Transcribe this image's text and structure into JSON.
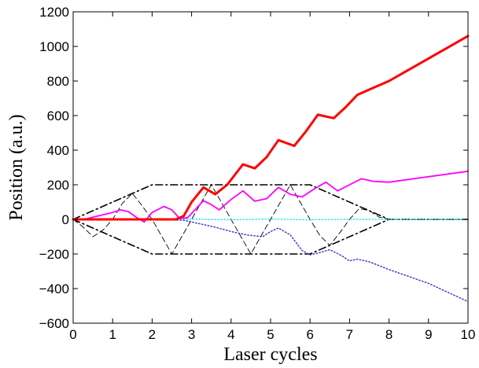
{
  "chart_data": {
    "type": "line",
    "title": "",
    "xlabel": "Laser cycles",
    "ylabel": "Position (a.u.)",
    "xlim": [
      0,
      10
    ],
    "ylim": [
      -600,
      1200
    ],
    "xticks": [
      0,
      1,
      2,
      3,
      4,
      5,
      6,
      7,
      8,
      9,
      10
    ],
    "yticks": [
      -600,
      -400,
      -200,
      0,
      200,
      400,
      600,
      800,
      1000,
      1200
    ],
    "xtick_labels": [
      "0",
      "1",
      "2",
      "3",
      "4",
      "5",
      "6",
      "7",
      "8",
      "9",
      "10"
    ],
    "ytick_labels": [
      "−600",
      "−400",
      "−200",
      "0",
      "200",
      "400",
      "600",
      "800",
      "1000",
      "1200"
    ],
    "grid": false,
    "legend": "none",
    "series": [
      {
        "color": "#000000",
        "style": "dash-dot",
        "width": 1.6,
        "points": [
          [
            0,
            0
          ],
          [
            2,
            200
          ],
          [
            6,
            200
          ],
          [
            8,
            0
          ],
          [
            10,
            0
          ]
        ]
      },
      {
        "color": "#000000",
        "style": "dash-dot",
        "width": 1.6,
        "points": [
          [
            0,
            0
          ],
          [
            2,
            -200
          ],
          [
            6,
            -200
          ],
          [
            8,
            0
          ]
        ]
      },
      {
        "color": "#000000",
        "style": "dashed",
        "width": 0.9,
        "points": [
          [
            0,
            0
          ],
          [
            0.25,
            -43
          ],
          [
            0.5,
            -100
          ],
          [
            0.75,
            -63
          ],
          [
            1,
            0
          ],
          [
            1.25,
            94
          ],
          [
            1.5,
            150
          ],
          [
            1.75,
            78
          ],
          [
            2,
            0
          ],
          [
            2.25,
            -100
          ],
          [
            2.5,
            -200
          ],
          [
            2.75,
            -100
          ],
          [
            3,
            0
          ],
          [
            3.25,
            100
          ],
          [
            3.5,
            200
          ],
          [
            3.75,
            100
          ],
          [
            4,
            0
          ],
          [
            4.25,
            -100
          ],
          [
            4.5,
            -200
          ],
          [
            4.75,
            -100
          ],
          [
            5,
            0
          ],
          [
            5.25,
            100
          ],
          [
            5.5,
            200
          ],
          [
            5.75,
            100
          ],
          [
            6,
            0
          ],
          [
            6.25,
            -94
          ],
          [
            6.5,
            -150
          ],
          [
            6.75,
            -78
          ],
          [
            7,
            0
          ],
          [
            7.25,
            63
          ],
          [
            7.5,
            50
          ],
          [
            7.75,
            13
          ],
          [
            8,
            0
          ],
          [
            10,
            0
          ]
        ]
      },
      {
        "color": "#00e5ee",
        "style": "dotted",
        "width": 1.2,
        "points": [
          [
            0,
            0
          ],
          [
            1,
            2
          ],
          [
            2,
            -1
          ],
          [
            3,
            2
          ],
          [
            4,
            -2
          ],
          [
            5,
            2
          ],
          [
            6,
            -2
          ],
          [
            7,
            1
          ],
          [
            8,
            0
          ],
          [
            10,
            0
          ]
        ]
      },
      {
        "color": "#3333cc",
        "style": "dotted",
        "width": 1.4,
        "points": [
          [
            0,
            0
          ],
          [
            1,
            0
          ],
          [
            2,
            0
          ],
          [
            2.8,
            -5
          ],
          [
            3.2,
            -25
          ],
          [
            3.6,
            -45
          ],
          [
            4,
            -70
          ],
          [
            4.4,
            -90
          ],
          [
            4.8,
            -100
          ],
          [
            5,
            -70
          ],
          [
            5.2,
            -50
          ],
          [
            5.5,
            -90
          ],
          [
            5.8,
            -180
          ],
          [
            6,
            -205
          ],
          [
            6.2,
            -195
          ],
          [
            6.5,
            -175
          ],
          [
            6.8,
            -210
          ],
          [
            7,
            -240
          ],
          [
            7.2,
            -230
          ],
          [
            7.5,
            -245
          ],
          [
            8,
            -290
          ],
          [
            9,
            -370
          ],
          [
            10,
            -475
          ]
        ]
      },
      {
        "color": "#ff00ff",
        "style": "solid",
        "width": 1.8,
        "points": [
          [
            0,
            0
          ],
          [
            0.3,
            2
          ],
          [
            0.6,
            18
          ],
          [
            1,
            40
          ],
          [
            1.2,
            55
          ],
          [
            1.4,
            45
          ],
          [
            1.6,
            12
          ],
          [
            1.8,
            -15
          ],
          [
            2,
            40
          ],
          [
            2.3,
            75
          ],
          [
            2.5,
            55
          ],
          [
            2.7,
            5
          ],
          [
            2.9,
            10
          ],
          [
            3.3,
            108
          ],
          [
            3.5,
            85
          ],
          [
            3.7,
            55
          ],
          [
            4,
            115
          ],
          [
            4.3,
            165
          ],
          [
            4.6,
            105
          ],
          [
            4.9,
            120
          ],
          [
            5.2,
            185
          ],
          [
            5.5,
            145
          ],
          [
            5.8,
            130
          ],
          [
            6.1,
            175
          ],
          [
            6.4,
            215
          ],
          [
            6.7,
            165
          ],
          [
            7,
            200
          ],
          [
            7.3,
            235
          ],
          [
            7.6,
            220
          ],
          [
            8,
            215
          ],
          [
            10,
            278
          ]
        ]
      },
      {
        "color": "#ff0000",
        "style": "solid",
        "width": 3,
        "points": [
          [
            0,
            0
          ],
          [
            1,
            0
          ],
          [
            2,
            0
          ],
          [
            2.6,
            0
          ],
          [
            2.8,
            20
          ],
          [
            3,
            100
          ],
          [
            3.3,
            185
          ],
          [
            3.6,
            145
          ],
          [
            3.9,
            200
          ],
          [
            4.3,
            318
          ],
          [
            4.6,
            295
          ],
          [
            4.9,
            360
          ],
          [
            5.2,
            458
          ],
          [
            5.6,
            425
          ],
          [
            5.9,
            510
          ],
          [
            6.2,
            605
          ],
          [
            6.6,
            585
          ],
          [
            6.9,
            648
          ],
          [
            7.2,
            720
          ],
          [
            7.6,
            760
          ],
          [
            8,
            800
          ],
          [
            9,
            930
          ],
          [
            10,
            1060
          ]
        ]
      }
    ]
  }
}
